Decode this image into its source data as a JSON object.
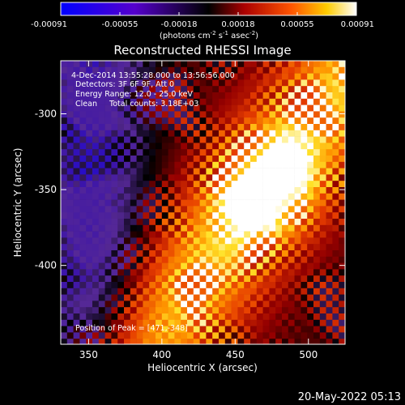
{
  "date_stamp": "20-May-2022 05:13",
  "colorbar": {
    "ticks": [
      "-0.00091",
      "-0.00055",
      "-0.00018",
      "0.00018",
      "0.00055",
      "0.00091"
    ],
    "units_prefix": "(photons cm",
    "units_exp1": "-2",
    "units_mid1": " s",
    "units_exp2": "-1",
    "units_mid2": " asec",
    "units_exp3": "-2",
    "units_suffix": ")",
    "range": [
      -0.00091,
      0.00091
    ]
  },
  "chart_data": {
    "type": "heatmap",
    "title": "Reconstructed RHESSI Image",
    "xlabel": "Heliocentric X (arcsec)",
    "ylabel": "Heliocentric Y (arcsec)",
    "x_ticks": [
      "350",
      "400",
      "450",
      "500"
    ],
    "y_ticks": [
      "-300",
      "-350",
      "-400"
    ],
    "xlim": [
      331,
      525
    ],
    "ylim": [
      -452,
      -265
    ],
    "info_lines": [
      "4-Dec-2014 13:55:28.000 to 13:56:56.000",
      "Detectors: 3F 6F 9F, Att 0",
      "Energy Range: 12.0 - 25.0 keV",
      "Clean     Total counts: 3.18E+03"
    ],
    "peak_label": "Position of Peak = [471,-348]",
    "peak": [
      471,
      -348
    ],
    "colormap": "rhessi-fire",
    "grid": false
  }
}
